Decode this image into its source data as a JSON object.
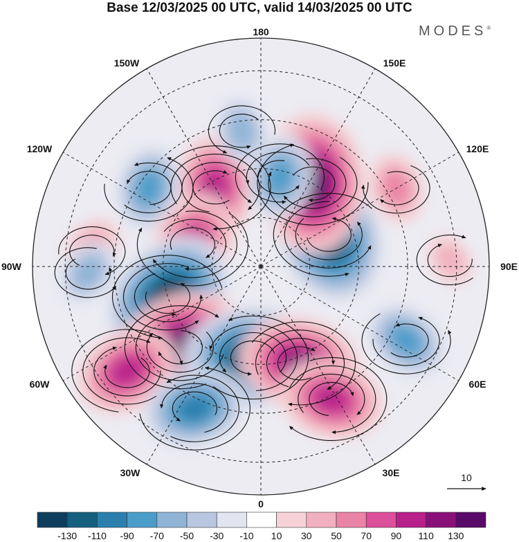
{
  "title": "Base 12/03/2025 00 UTC, valid 14/03/2025 00 UTC",
  "brand": "MODES",
  "brand_mark": "®",
  "longitude_labels": {
    "top": "180",
    "bottom": "0",
    "left": "90W",
    "right": "90E",
    "upper_left_1": "150W",
    "upper_left_2": "120W",
    "upper_right_1": "150E",
    "upper_right_2": "120E",
    "lower_left_1": "60W",
    "lower_left_2": "30W",
    "lower_right_1": "60E",
    "lower_right_2": "30E"
  },
  "vector_reference": {
    "value": "10"
  },
  "colorbar": {
    "tick_labels": [
      "-130",
      "-110",
      "-90",
      "-70",
      "-50",
      "-30",
      "-10",
      "10",
      "30",
      "50",
      "70",
      "90",
      "110",
      "130"
    ],
    "colors": [
      "#0e3e5c",
      "#15607f",
      "#2a7fad",
      "#4b9dc9",
      "#8fb4d6",
      "#b9c6e0",
      "#e2e4f0",
      "#ffffff",
      "#f6d2d6",
      "#f1b0bd",
      "#ea83a6",
      "#dc4f9a",
      "#b8208b",
      "#8a1079",
      "#5a0a68"
    ]
  },
  "anomalies": [
    {
      "kind": "positive",
      "level": 4,
      "lon": -150,
      "lat": 62
    },
    {
      "kind": "negative",
      "level": 3,
      "lon": -125,
      "lat": 48
    },
    {
      "kind": "positive",
      "level": 2,
      "lon": -95,
      "lat": 38
    },
    {
      "kind": "positive",
      "level": 4,
      "lon": -108,
      "lat": 68
    },
    {
      "kind": "negative",
      "level": 6,
      "lon": -72,
      "lat": 60
    },
    {
      "kind": "negative",
      "level": 2,
      "lon": -88,
      "lat": 37
    },
    {
      "kind": "positive",
      "level": 6,
      "lon": -45,
      "lat": 55
    },
    {
      "kind": "positive",
      "level": 4,
      "lon": -52,
      "lat": 38
    },
    {
      "kind": "negative",
      "level": 6,
      "lon": -5,
      "lat": 62
    },
    {
      "kind": "negative",
      "level": 4,
      "lon": -25,
      "lat": 42
    },
    {
      "kind": "positive",
      "level": 5,
      "lon": 22,
      "lat": 58
    },
    {
      "kind": "positive",
      "level": 4,
      "lon": 28,
      "lat": 44
    },
    {
      "kind": "negative",
      "level": 3,
      "lon": 63,
      "lat": 40
    },
    {
      "kind": "negative",
      "level": 6,
      "lon": 115,
      "lat": 67
    },
    {
      "kind": "positive",
      "level": 6,
      "lon": 148,
      "lat": 60
    },
    {
      "kind": "positive",
      "level": 2,
      "lon": 120,
      "lat": 42
    },
    {
      "kind": "negative",
      "level": 3,
      "lon": 168,
      "lat": 62
    },
    {
      "kind": "negative",
      "level": 2,
      "lon": -172,
      "lat": 48
    },
    {
      "kind": "positive",
      "level": 1,
      "lon": 92,
      "lat": 32
    }
  ]
}
